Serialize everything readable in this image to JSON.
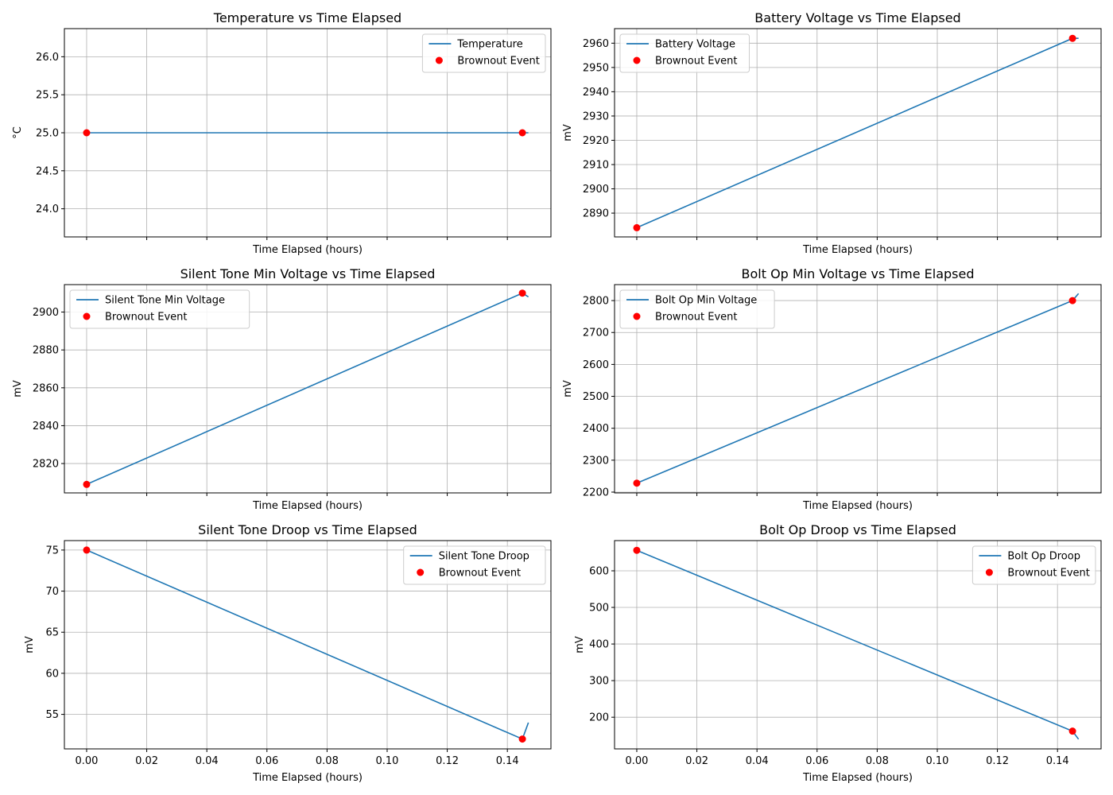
{
  "chart_data": [
    {
      "type": "line",
      "title": "Temperature vs Time Elapsed",
      "xlabel": "Time Elapsed (hours)",
      "ylabel": "°C",
      "xlim": [
        -0.0074,
        0.1545
      ],
      "ylim": [
        23.63,
        26.37
      ],
      "yticks": [
        24.0,
        24.5,
        25.0,
        25.5,
        26.0
      ],
      "ytick_labels": [
        "24.0",
        "24.5",
        "25.0",
        "25.5",
        "26.0"
      ],
      "show_xtick_labels": false,
      "legend_position": "top-right",
      "grid": true,
      "series": [
        {
          "name": "Temperature",
          "x": [
            0.0,
            0.145,
            0.147
          ],
          "y": [
            25.0,
            25.0,
            25.0
          ]
        }
      ],
      "events": {
        "name": "Brownout Event",
        "x": [
          0.0,
          0.145
        ],
        "y": [
          25.0,
          25.0
        ]
      }
    },
    {
      "type": "line",
      "title": "Battery Voltage vs Time Elapsed",
      "xlabel": "Time Elapsed (hours)",
      "ylabel": "mV",
      "xlim": [
        -0.0074,
        0.1545
      ],
      "ylim": [
        2880.2,
        2966.0
      ],
      "yticks": [
        2890,
        2900,
        2910,
        2920,
        2930,
        2940,
        2950,
        2960
      ],
      "ytick_labels": [
        "2890",
        "2900",
        "2910",
        "2920",
        "2930",
        "2940",
        "2950",
        "2960"
      ],
      "show_xtick_labels": false,
      "legend_position": "top-left",
      "grid": true,
      "series": [
        {
          "name": "Battery Voltage",
          "x": [
            0.0,
            0.145,
            0.147
          ],
          "y": [
            2884,
            2962,
            2962
          ]
        }
      ],
      "events": {
        "name": "Brownout Event",
        "x": [
          0.0,
          0.145
        ],
        "y": [
          2884,
          2962
        ]
      }
    },
    {
      "type": "line",
      "title": "Silent Tone Min Voltage vs Time Elapsed",
      "xlabel": "Time Elapsed (hours)",
      "ylabel": "mV",
      "xlim": [
        -0.0074,
        0.1545
      ],
      "ylim": [
        2804.5,
        2914.5
      ],
      "yticks": [
        2820,
        2840,
        2860,
        2880,
        2900
      ],
      "ytick_labels": [
        "2820",
        "2840",
        "2860",
        "2880",
        "2900"
      ],
      "show_xtick_labels": false,
      "legend_position": "top-left",
      "grid": true,
      "series": [
        {
          "name": "Silent Tone Min Voltage",
          "x": [
            0.0,
            0.145,
            0.147
          ],
          "y": [
            2809,
            2910,
            2908
          ]
        }
      ],
      "events": {
        "name": "Brownout Event",
        "x": [
          0.0,
          0.145
        ],
        "y": [
          2809,
          2910
        ]
      }
    },
    {
      "type": "line",
      "title": "Bolt Op Min Voltage vs Time Elapsed",
      "xlabel": "Time Elapsed (hours)",
      "ylabel": "mV",
      "xlim": [
        -0.0074,
        0.1545
      ],
      "ylim": [
        2197.5,
        2850.0
      ],
      "yticks": [
        2200,
        2300,
        2400,
        2500,
        2600,
        2700,
        2800
      ],
      "ytick_labels": [
        "2200",
        "2300",
        "2400",
        "2500",
        "2600",
        "2700",
        "2800"
      ],
      "show_xtick_labels": false,
      "legend_position": "top-left",
      "grid": true,
      "series": [
        {
          "name": "Bolt Op Min Voltage",
          "x": [
            0.0,
            0.145,
            0.147
          ],
          "y": [
            2228,
            2800,
            2822
          ]
        }
      ],
      "events": {
        "name": "Brownout Event",
        "x": [
          0.0,
          0.145
        ],
        "y": [
          2228,
          2800
        ]
      }
    },
    {
      "type": "line",
      "title": "Silent Tone Droop vs Time Elapsed",
      "xlabel": "Time Elapsed (hours)",
      "ylabel": "mV",
      "xlim": [
        -0.0074,
        0.1545
      ],
      "ylim": [
        50.8,
        76.15
      ],
      "yticks": [
        55,
        60,
        65,
        70,
        75
      ],
      "ytick_labels": [
        "55",
        "60",
        "65",
        "70",
        "75"
      ],
      "xticks": [
        0.0,
        0.02,
        0.04,
        0.06,
        0.08,
        0.1,
        0.12,
        0.14
      ],
      "xtick_labels": [
        "0.00",
        "0.02",
        "0.04",
        "0.06",
        "0.08",
        "0.10",
        "0.12",
        "0.14"
      ],
      "show_xtick_labels": true,
      "legend_position": "top-right",
      "grid": true,
      "series": [
        {
          "name": "Silent Tone Droop",
          "x": [
            0.0,
            0.145,
            0.147
          ],
          "y": [
            75,
            52,
            54
          ]
        }
      ],
      "events": {
        "name": "Brownout Event",
        "x": [
          0.0,
          0.145
        ],
        "y": [
          75,
          52
        ]
      }
    },
    {
      "type": "line",
      "title": "Bolt Op Droop vs Time Elapsed",
      "xlabel": "Time Elapsed (hours)",
      "ylabel": "mV",
      "xlim": [
        -0.0074,
        0.1545
      ],
      "ylim": [
        113.5,
        682.5
      ],
      "yticks": [
        200,
        300,
        400,
        500,
        600
      ],
      "ytick_labels": [
        "200",
        "300",
        "400",
        "500",
        "600"
      ],
      "xticks": [
        0.0,
        0.02,
        0.04,
        0.06,
        0.08,
        0.1,
        0.12,
        0.14
      ],
      "xtick_labels": [
        "0.00",
        "0.02",
        "0.04",
        "0.06",
        "0.08",
        "0.10",
        "0.12",
        "0.14"
      ],
      "show_xtick_labels": true,
      "legend_position": "top-right",
      "grid": true,
      "series": [
        {
          "name": "Bolt Op Droop",
          "x": [
            0.0,
            0.145,
            0.147
          ],
          "y": [
            656,
            162,
            140
          ]
        }
      ],
      "events": {
        "name": "Brownout Event",
        "x": [
          0.0,
          0.145
        ],
        "y": [
          656,
          162
        ]
      }
    }
  ],
  "colors": {
    "line": "#1f77b4",
    "event": "#ff0000",
    "grid": "#b0b0b0",
    "axes": "#000000",
    "legend_border": "#cccccc"
  }
}
